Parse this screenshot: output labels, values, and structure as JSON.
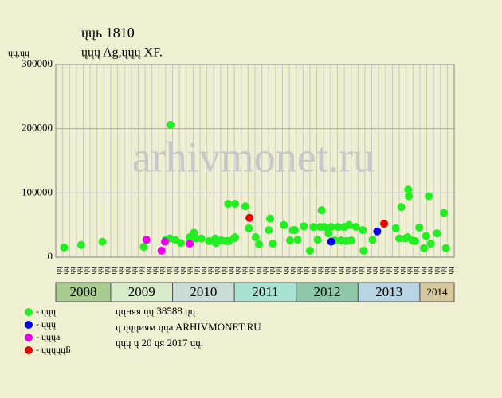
{
  "chart_data": {
    "type": "scatter",
    "title": "ųųь 1810",
    "subtitle": "ųųų Ag,ųųų XF.",
    "y_label": "ųų,ųų",
    "watermark": "arhivmonet.ru",
    "xlim": [
      0,
      58
    ],
    "ylim": [
      0,
      300000
    ],
    "yticks": [
      0,
      100000,
      200000,
      300000
    ],
    "grid": true,
    "categories": [
      "ųų",
      "ųų",
      "ųų",
      "ųų",
      "ųų",
      "ųų",
      "ųų",
      "ųų",
      "ųų",
      "ųų",
      "ųų",
      "ųų",
      "ųų",
      "ųų",
      "ųų",
      "ųų",
      "ųų",
      "ųų",
      "ųų",
      "ųų",
      "ųų",
      "ųų",
      "ųų",
      "ųų",
      "ųų",
      "ųų",
      "ųų",
      "ųų",
      "ųų",
      "ųų",
      "ųų",
      "ųų",
      "ųų",
      "ųų",
      "ųų",
      "ųų",
      "ųų",
      "ųų",
      "ųų",
      "ųų",
      "ųų",
      "ųų",
      "ųų",
      "ųų",
      "ųų",
      "ųų",
      "ųų",
      "ųų",
      "ųų",
      "ųų",
      "ųų",
      "ųų",
      "ųų",
      "ųų",
      "ųų",
      "ųų",
      "ųų",
      "ųų"
    ],
    "year_bands": [
      {
        "label": "2008",
        "from": 0,
        "to": 8,
        "color": "#a9cc90"
      },
      {
        "label": "2009",
        "from": 8,
        "to": 17,
        "color": "#d8ecca"
      },
      {
        "label": "2010",
        "from": 17,
        "to": 26,
        "color": "#c9dcd6"
      },
      {
        "label": "2011",
        "from": 26,
        "to": 35,
        "color": "#a8e2d2"
      },
      {
        "label": "2012",
        "from": 35,
        "to": 44,
        "color": "#8fc8a8"
      },
      {
        "label": "2013",
        "from": 44,
        "to": 53,
        "color": "#b9d4e2"
      },
      {
        "label": "2014",
        "from": 53,
        "to": 58,
        "color": "#d6c89a"
      }
    ],
    "series": [
      {
        "name": "- ųųų",
        "color": "#22ee22",
        "x": [
          1.2,
          3.7,
          6.8,
          12.8,
          16.0,
          16.7,
          16.6,
          17.4,
          18.2,
          19.5,
          20.1,
          20.4,
          21.2,
          22.3,
          23.2,
          23.3,
          24.1,
          24.8,
          25.1,
          25.2,
          25.9,
          26.1,
          26.1,
          27.6,
          28.1,
          29.1,
          29.6,
          31.0,
          31.2,
          31.6,
          33.2,
          34.1,
          34.5,
          34.8,
          35.2,
          36.1,
          37.0,
          37.5,
          38.1,
          38.5,
          38.7,
          39.1,
          39.7,
          40.1,
          40.6,
          41.1,
          41.5,
          42.0,
          42.3,
          42.7,
          43.0,
          43.7,
          44.7,
          44.8,
          46.1,
          49.5,
          50.0,
          50.3,
          50.9,
          51.2,
          51.3,
          51.4,
          51.9,
          52.3,
          52.9,
          53.6,
          53.9,
          54.3,
          54.6,
          55.5,
          56.5,
          56.8
        ],
        "values": [
          15000,
          19000,
          24000,
          16000,
          27000,
          206000,
          29000,
          27000,
          22000,
          31000,
          38000,
          29000,
          29000,
          25000,
          29000,
          22000,
          26000,
          25000,
          83000,
          25000,
          29000,
          83000,
          31000,
          79000,
          45000,
          31000,
          20000,
          42000,
          60000,
          21000,
          50000,
          26000,
          42000,
          42000,
          27000,
          48000,
          10000,
          47000,
          27000,
          47000,
          73000,
          47000,
          37000,
          47000,
          26000,
          47000,
          26000,
          47000,
          25000,
          50000,
          26000,
          47000,
          42000,
          10000,
          27000,
          45000,
          29000,
          78000,
          29000,
          31000,
          105000,
          95000,
          26000,
          25000,
          46000,
          14000,
          33000,
          95000,
          21000,
          37000,
          69000,
          14000
        ]
      },
      {
        "name": "- ųųų",
        "color": "#0000ee",
        "x": [
          40.1,
          46.8
        ],
        "values": [
          24000,
          40000
        ]
      },
      {
        "name": "- ųųųa",
        "color": "#ee00ee",
        "x": [
          13.2,
          15.4,
          15.9,
          19.5
        ],
        "values": [
          27000,
          10000,
          24000,
          21000
        ]
      },
      {
        "name": "- ųųųųųБ",
        "color": "#ee0000",
        "x": [
          28.2,
          47.8
        ],
        "values": [
          61000,
          52000
        ]
      }
    ],
    "notes": [
      "ųųняя ųų 38588 ųų",
      "ų ųųųиям ųųa ARHIVMONET.RU",
      "ųųų ų 20 ųя 2017 ųų."
    ]
  }
}
